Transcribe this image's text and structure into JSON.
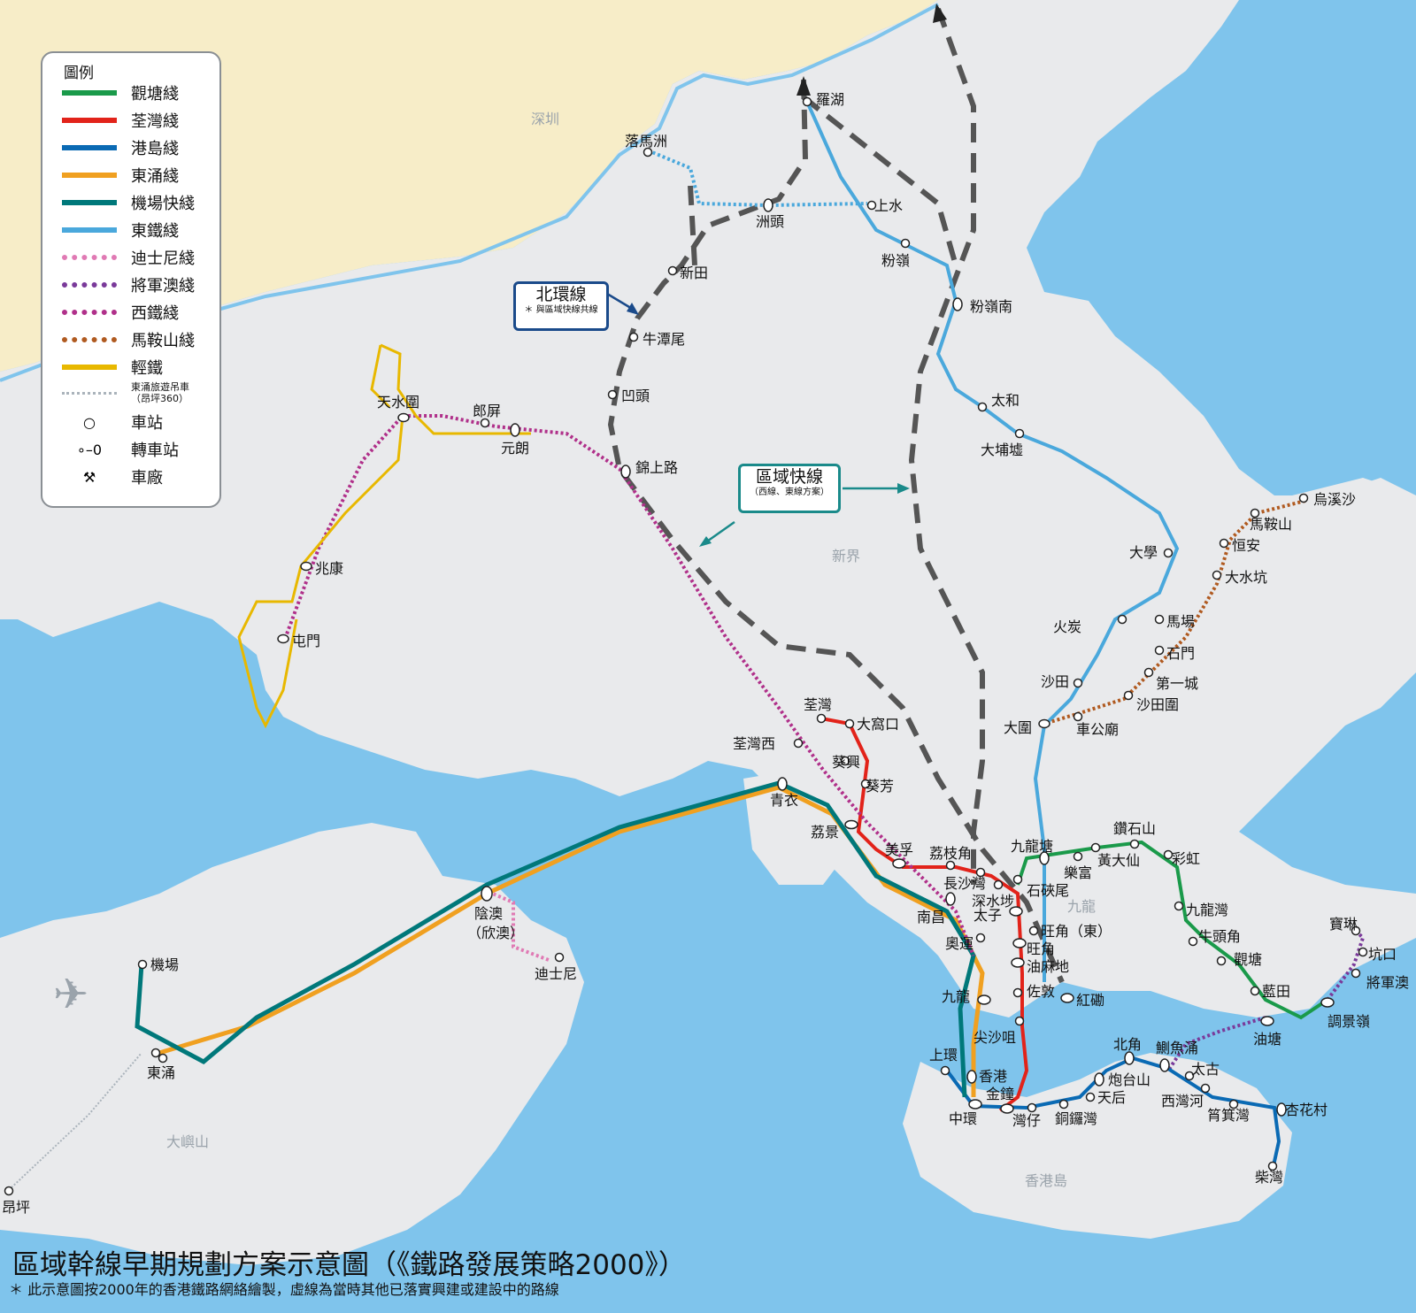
{
  "title": "區域幹線早期規劃方案示意圖（《鐵路發展策略2000》）",
  "note": "＊ 此示意圖按2000年的香港鐵路網絡繪製，虛線為當時其他已落實興建或建設中的路線",
  "areas": {
    "shenzhen": "深圳",
    "new_territories": "新界",
    "kowloon": "九龍",
    "lantau": "大嶼山",
    "hk_island": "香港島"
  },
  "legend": {
    "title": "圖例",
    "items": [
      {
        "label": "觀塘綫",
        "color": "#1a9a4a",
        "style": "solid"
      },
      {
        "label": "荃灣綫",
        "color": "#e2231a",
        "style": "solid"
      },
      {
        "label": "港島綫",
        "color": "#0a6ab4",
        "style": "solid"
      },
      {
        "label": "東涌綫",
        "color": "#f0a020",
        "style": "solid"
      },
      {
        "label": "機場快綫",
        "color": "#00787a",
        "style": "solid"
      },
      {
        "label": "東鐵綫",
        "color": "#4aa8dc",
        "style": "solid"
      },
      {
        "label": "迪士尼綫",
        "color": "#e07ab4",
        "style": "dotted"
      },
      {
        "label": "將軍澳綫",
        "color": "#7a3a9a",
        "style": "dotted"
      },
      {
        "label": "西鐵綫",
        "color": "#b0308a",
        "style": "dotted"
      },
      {
        "label": "馬鞍山綫",
        "color": "#b05a20",
        "style": "dotted"
      },
      {
        "label": "輕鐵",
        "color": "#e8b800",
        "style": "solid"
      }
    ],
    "cable_car_line1": "東涌旅遊吊車",
    "cable_car_line2": "（昂坪360）",
    "station_label": "車站",
    "interchange_label": "轉車站",
    "depot_label": "車廠"
  },
  "callouts": {
    "north_loop": "北環線",
    "north_loop_note": "＊ 與區域快線共線",
    "regional_express": "區域快線",
    "regional_express_note": "（西線、東線方案）"
  },
  "stations": {
    "lok_ma_chau": "落馬洲",
    "lo_wu": "羅湖",
    "chau_tau": "洲頭",
    "sheung_shui": "上水",
    "fanling": "粉嶺",
    "san_tin": "新田",
    "ngau_tam_mei": "牛潭尾",
    "au_tau": "凹頭",
    "kam_sheung_road": "錦上路",
    "fanling_south": "粉嶺南",
    "tai_wo": "太和",
    "tai_po_market": "大埔墟",
    "university": "大學",
    "fo_tan": "火炭",
    "ma_chang": "馬場",
    "sha_tin": "沙田",
    "tai_wai": "大圍",
    "wu_kai_sha": "烏溪沙",
    "ma_on_shan": "馬鞍山",
    "heng_on": "恒安",
    "tai_shui_hang": "大水坑",
    "shek_mun": "石門",
    "city_one": "第一城",
    "sha_tin_wai": "沙田圍",
    "che_kung_temple": "車公廟",
    "tin_shui_wai": "天水圍",
    "long_ping": "郎屏",
    "yuen_long": "元朗",
    "siu_hong": "兆康",
    "tuen_mun": "屯門",
    "tsuen_wan": "荃灣",
    "tai_wo_hau": "大窩口",
    "kwai_hing": "葵興",
    "kwai_fong": "葵芳",
    "lai_king": "荔景",
    "tsuen_wan_west": "荃灣西",
    "tsing_yi": "青衣",
    "mei_foo": "美孚",
    "lai_chi_kok": "荔枝角",
    "cheung_sha_wan": "長沙灣",
    "sham_shui_po": "深水埗",
    "nam_cheong": "南昌",
    "prince_edward": "太子",
    "shek_kip_mei": "石硤尾",
    "kowloon_tong": "九龍塘",
    "mong_kok_east": "旺角（東）",
    "mong_kok": "旺角",
    "yau_ma_tei": "油麻地",
    "jordan": "佐敦",
    "tsim_sha_tsui": "尖沙咀",
    "olympic": "奧運",
    "kowloon": "九龍",
    "hung_hom": "紅磡",
    "lok_fu": "樂富",
    "wong_tai_sin": "黃大仙",
    "diamond_hill": "鑽石山",
    "choi_hung": "彩虹",
    "kowloon_bay": "九龍灣",
    "ngau_tau_kok": "牛頭角",
    "kwun_tong": "觀塘",
    "lam_tin": "藍田",
    "yau_tong": "油塘",
    "tiu_keng_leng": "調景嶺",
    "tseung_kwan_o": "將軍澳",
    "hang_hau": "坑口",
    "po_lam": "寶琳",
    "sheung_wan": "上環",
    "central": "中環",
    "hong_kong": "香港",
    "admiralty": "金鐘",
    "wan_chai": "灣仔",
    "causeway_bay": "銅鑼灣",
    "tin_hau": "天后",
    "fortress_hill": "炮台山",
    "north_point": "北角",
    "quarry_bay": "鰂魚涌",
    "tai_koo": "太古",
    "sai_wan_ho": "西灣河",
    "shau_kei_wan": "筲箕灣",
    "heng_fa_chuen": "杏花村",
    "chai_wan": "柴灣",
    "sunny_bay_1": "陰澳",
    "sunny_bay_2": "（欣澳）",
    "disneyland": "迪士尼",
    "airport": "機場",
    "tung_chung": "東涌",
    "ngong_ping": "昂坪"
  },
  "colors": {
    "sea": "#7fc4ec",
    "land": "#e9eaec",
    "shenzhen": "#f7edc8",
    "kwun_tong": "#1a9a4a",
    "tsuen_wan": "#e2231a",
    "island": "#0a6ab4",
    "tung_chung": "#f0a020",
    "airport_express": "#00787a",
    "east_rail": "#4aa8dc",
    "disney": "#e07ab4",
    "tko": "#7a3a9a",
    "west_rail": "#b0308a",
    "ma_on_shan": "#b05a20",
    "light_rail": "#e8b800",
    "planned": "#555555",
    "callout_north": "#1a4a8a",
    "callout_express": "#1a8a8a"
  }
}
